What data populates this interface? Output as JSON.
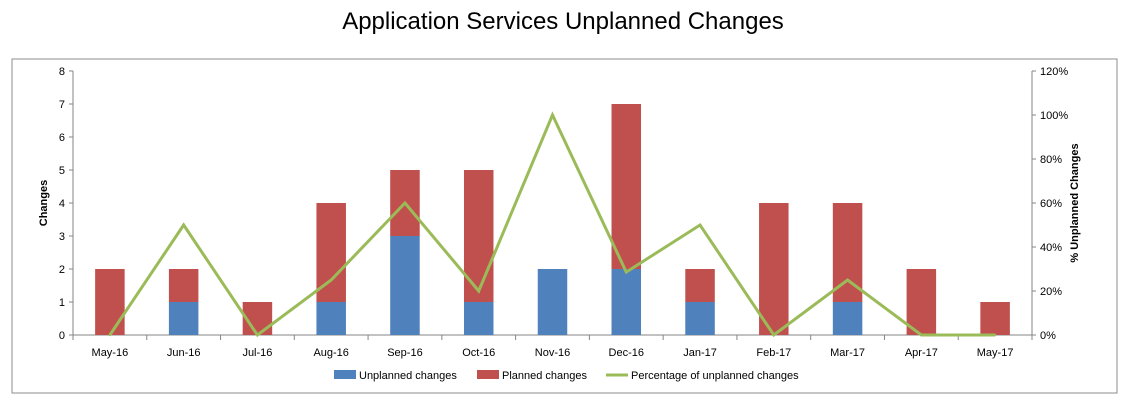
{
  "chart_data": {
    "type": "bar",
    "stacked": true,
    "title": "Application Services Unplanned Changes",
    "categories": [
      "May-16",
      "Jun-16",
      "Jul-16",
      "Aug-16",
      "Sep-16",
      "Oct-16",
      "Nov-16",
      "Dec-16",
      "Jan-17",
      "Feb-17",
      "Mar-17",
      "Apr-17",
      "May-17"
    ],
    "series": [
      {
        "name": "Unplanned changes",
        "type": "bar",
        "axis": "left",
        "color": "#4f81bd",
        "values": [
          0,
          1,
          0,
          1,
          3,
          1,
          2,
          2,
          1,
          0,
          1,
          0,
          0
        ]
      },
      {
        "name": "Planned changes",
        "type": "bar",
        "axis": "left",
        "color": "#c0504d",
        "values": [
          2,
          1,
          1,
          3,
          2,
          4,
          0,
          5,
          1,
          4,
          3,
          2,
          1
        ]
      },
      {
        "name": "Percentage of unplanned changes",
        "type": "line",
        "axis": "right",
        "color": "#9bbb59",
        "values": [
          0,
          50,
          0,
          25,
          60,
          20,
          100,
          28.6,
          50,
          0,
          25,
          0,
          0
        ]
      }
    ],
    "ylabel": "Changes",
    "y2label": "% Unplanned Changes",
    "ylim": [
      0,
      8
    ],
    "yticks": [
      "0",
      "1",
      "2",
      "3",
      "4",
      "5",
      "6",
      "7",
      "8"
    ],
    "y2lim": [
      0,
      120
    ],
    "y2ticks": [
      "0%",
      "20%",
      "40%",
      "60%",
      "80%",
      "100%",
      "120%"
    ],
    "grid": false,
    "legend": "bottom"
  }
}
